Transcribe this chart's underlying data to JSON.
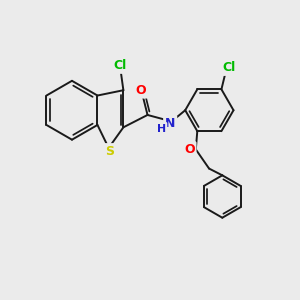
{
  "background_color": "#ebebeb",
  "bond_color": "#1a1a1a",
  "bond_width": 1.4,
  "atom_colors": {
    "Cl": "#00bb00",
    "O": "#ff0000",
    "N": "#2222cc",
    "S": "#cccc00",
    "H": "#2222cc"
  },
  "fig_width": 3.0,
  "fig_height": 3.0,
  "dpi": 100
}
